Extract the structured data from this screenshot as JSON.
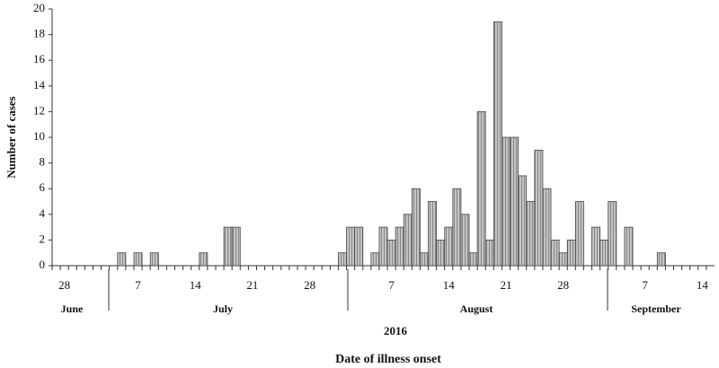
{
  "chart_data": {
    "type": "bar",
    "x_label": "Date of illness onset",
    "y_label": "Number of cases",
    "year_label": "2016",
    "month_labels": [
      "June",
      "July",
      "August",
      "September"
    ],
    "color": "#c4c4c4",
    "categories": [
      null,
      "28",
      null,
      null,
      null,
      null,
      null,
      null,
      null,
      null,
      "7",
      null,
      null,
      null,
      null,
      null,
      null,
      "14",
      null,
      null,
      null,
      null,
      null,
      null,
      "21",
      null,
      null,
      null,
      null,
      null,
      null,
      "28",
      null,
      null,
      null,
      null,
      null,
      null,
      null,
      null,
      null,
      "7",
      null,
      null,
      null,
      null,
      null,
      null,
      "14",
      null,
      null,
      null,
      null,
      null,
      null,
      "21",
      null,
      null,
      null,
      null,
      null,
      null,
      "28",
      null,
      null,
      null,
      null,
      null,
      null,
      null,
      null,
      null,
      "7",
      null,
      null,
      null,
      null,
      null,
      null,
      "14",
      null
    ],
    "values": [
      0,
      0,
      0,
      0,
      0,
      0,
      0,
      0,
      1,
      0,
      1,
      0,
      1,
      0,
      0,
      0,
      0,
      0,
      1,
      0,
      0,
      3,
      3,
      0,
      0,
      0,
      0,
      0,
      0,
      0,
      0,
      0,
      0,
      0,
      0,
      1,
      3,
      3,
      0,
      1,
      3,
      2,
      3,
      4,
      6,
      1,
      5,
      2,
      3,
      6,
      4,
      1,
      12,
      2,
      19,
      10,
      10,
      7,
      5,
      9,
      6,
      2,
      1,
      2,
      5,
      0,
      3,
      2,
      5,
      0,
      3,
      0,
      0,
      0,
      1,
      0,
      0,
      0,
      0,
      0,
      0
    ],
    "ylim": [
      0,
      20
    ],
    "yticks": [
      0,
      2,
      4,
      6,
      8,
      10,
      12,
      14,
      16,
      18,
      20
    ]
  }
}
